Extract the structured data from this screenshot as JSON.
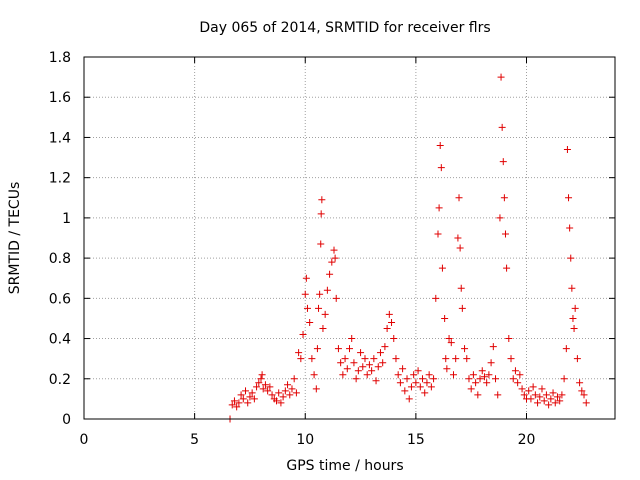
{
  "chart_data": {
    "type": "scatter",
    "title": "Day 065 of 2014, SRMTID for receiver flrs",
    "xlabel": "GPS time / hours",
    "ylabel": "SRMTID / TECUs",
    "xlim": [
      0,
      24
    ],
    "ylim": [
      0,
      1.8
    ],
    "xticks": [
      0,
      5,
      10,
      15,
      20
    ],
    "xtick_labels": [
      "0",
      "5",
      "10",
      "15",
      "20"
    ],
    "yticks": [
      0,
      0.2,
      0.4,
      0.6,
      0.8,
      1.0,
      1.2,
      1.4,
      1.6,
      1.8
    ],
    "ytick_labels": [
      "0",
      "0.2",
      "0.4",
      "0.6",
      "0.8",
      "1",
      "1.2",
      "1.4",
      "1.6",
      "1.8"
    ],
    "grid": true,
    "marker": "+",
    "color": "#e00000",
    "series": [
      {
        "name": "SRMTID",
        "points": [
          [
            6.6,
            0.0
          ],
          [
            6.7,
            0.07
          ],
          [
            6.8,
            0.09
          ],
          [
            6.9,
            0.06
          ],
          [
            7.0,
            0.08
          ],
          [
            7.1,
            0.12
          ],
          [
            7.2,
            0.1
          ],
          [
            7.3,
            0.14
          ],
          [
            7.4,
            0.08
          ],
          [
            7.5,
            0.11
          ],
          [
            7.6,
            0.13
          ],
          [
            7.7,
            0.1
          ],
          [
            7.8,
            0.16
          ],
          [
            7.9,
            0.18
          ],
          [
            8.0,
            0.2
          ],
          [
            8.05,
            0.22
          ],
          [
            8.1,
            0.15
          ],
          [
            8.2,
            0.17
          ],
          [
            8.3,
            0.14
          ],
          [
            8.4,
            0.16
          ],
          [
            8.5,
            0.12
          ],
          [
            8.6,
            0.1
          ],
          [
            8.7,
            0.09
          ],
          [
            8.8,
            0.13
          ],
          [
            8.9,
            0.08
          ],
          [
            9.0,
            0.11
          ],
          [
            9.1,
            0.14
          ],
          [
            9.2,
            0.17
          ],
          [
            9.3,
            0.12
          ],
          [
            9.4,
            0.15
          ],
          [
            9.5,
            0.2
          ],
          [
            9.6,
            0.13
          ],
          [
            9.7,
            0.33
          ],
          [
            9.8,
            0.3
          ],
          [
            9.9,
            0.42
          ],
          [
            10.0,
            0.62
          ],
          [
            10.05,
            0.7
          ],
          [
            10.1,
            0.55
          ],
          [
            10.2,
            0.48
          ],
          [
            10.3,
            0.3
          ],
          [
            10.4,
            0.22
          ],
          [
            10.5,
            0.15
          ],
          [
            10.55,
            0.35
          ],
          [
            10.6,
            0.55
          ],
          [
            10.65,
            0.62
          ],
          [
            10.7,
            0.87
          ],
          [
            10.72,
            1.02
          ],
          [
            10.75,
            1.09
          ],
          [
            10.8,
            0.45
          ],
          [
            10.9,
            0.52
          ],
          [
            11.0,
            0.64
          ],
          [
            11.1,
            0.72
          ],
          [
            11.2,
            0.78
          ],
          [
            11.3,
            0.84
          ],
          [
            11.35,
            0.8
          ],
          [
            11.4,
            0.6
          ],
          [
            11.5,
            0.35
          ],
          [
            11.6,
            0.28
          ],
          [
            11.7,
            0.22
          ],
          [
            11.8,
            0.3
          ],
          [
            11.9,
            0.25
          ],
          [
            12.0,
            0.35
          ],
          [
            12.1,
            0.4
          ],
          [
            12.2,
            0.28
          ],
          [
            12.3,
            0.2
          ],
          [
            12.4,
            0.24
          ],
          [
            12.5,
            0.33
          ],
          [
            12.6,
            0.26
          ],
          [
            12.7,
            0.3
          ],
          [
            12.8,
            0.22
          ],
          [
            12.9,
            0.27
          ],
          [
            13.0,
            0.24
          ],
          [
            13.1,
            0.3
          ],
          [
            13.2,
            0.19
          ],
          [
            13.3,
            0.26
          ],
          [
            13.4,
            0.33
          ],
          [
            13.5,
            0.28
          ],
          [
            13.6,
            0.36
          ],
          [
            13.7,
            0.45
          ],
          [
            13.8,
            0.52
          ],
          [
            13.9,
            0.48
          ],
          [
            14.0,
            0.4
          ],
          [
            14.1,
            0.3
          ],
          [
            14.2,
            0.22
          ],
          [
            14.3,
            0.18
          ],
          [
            14.4,
            0.25
          ],
          [
            14.5,
            0.14
          ],
          [
            14.6,
            0.2
          ],
          [
            14.7,
            0.1
          ],
          [
            14.8,
            0.16
          ],
          [
            14.9,
            0.22
          ],
          [
            15.0,
            0.18
          ],
          [
            15.1,
            0.24
          ],
          [
            15.2,
            0.16
          ],
          [
            15.3,
            0.2
          ],
          [
            15.4,
            0.13
          ],
          [
            15.5,
            0.18
          ],
          [
            15.6,
            0.22
          ],
          [
            15.7,
            0.16
          ],
          [
            15.8,
            0.2
          ],
          [
            15.9,
            0.6
          ],
          [
            16.0,
            0.92
          ],
          [
            16.05,
            1.05
          ],
          [
            16.1,
            1.36
          ],
          [
            16.15,
            1.25
          ],
          [
            16.2,
            0.75
          ],
          [
            16.3,
            0.5
          ],
          [
            16.35,
            0.3
          ],
          [
            16.4,
            0.25
          ],
          [
            16.5,
            0.4
          ],
          [
            16.6,
            0.38
          ],
          [
            16.7,
            0.22
          ],
          [
            16.8,
            0.3
          ],
          [
            16.9,
            0.9
          ],
          [
            16.95,
            1.1
          ],
          [
            17.0,
            0.85
          ],
          [
            17.05,
            0.65
          ],
          [
            17.1,
            0.55
          ],
          [
            17.2,
            0.35
          ],
          [
            17.3,
            0.3
          ],
          [
            17.4,
            0.2
          ],
          [
            17.5,
            0.15
          ],
          [
            17.6,
            0.22
          ],
          [
            17.7,
            0.18
          ],
          [
            17.8,
            0.12
          ],
          [
            17.9,
            0.2
          ],
          [
            18.0,
            0.24
          ],
          [
            18.1,
            0.21
          ],
          [
            18.2,
            0.18
          ],
          [
            18.3,
            0.22
          ],
          [
            18.4,
            0.28
          ],
          [
            18.5,
            0.36
          ],
          [
            18.6,
            0.2
          ],
          [
            18.7,
            0.12
          ],
          [
            18.8,
            1.0
          ],
          [
            18.85,
            1.7
          ],
          [
            18.9,
            1.45
          ],
          [
            18.95,
            1.28
          ],
          [
            19.0,
            1.1
          ],
          [
            19.05,
            0.92
          ],
          [
            19.1,
            0.75
          ],
          [
            19.2,
            0.4
          ],
          [
            19.3,
            0.3
          ],
          [
            19.4,
            0.2
          ],
          [
            19.5,
            0.24
          ],
          [
            19.6,
            0.18
          ],
          [
            19.7,
            0.22
          ],
          [
            19.8,
            0.15
          ],
          [
            19.9,
            0.12
          ],
          [
            20.0,
            0.1
          ],
          [
            20.1,
            0.14
          ],
          [
            20.2,
            0.1
          ],
          [
            20.3,
            0.16
          ],
          [
            20.4,
            0.12
          ],
          [
            20.5,
            0.08
          ],
          [
            20.6,
            0.11
          ],
          [
            20.7,
            0.15
          ],
          [
            20.8,
            0.09
          ],
          [
            20.9,
            0.12
          ],
          [
            21.0,
            0.07
          ],
          [
            21.1,
            0.1
          ],
          [
            21.2,
            0.13
          ],
          [
            21.3,
            0.08
          ],
          [
            21.4,
            0.11
          ],
          [
            21.5,
            0.09
          ],
          [
            21.6,
            0.12
          ],
          [
            21.7,
            0.2
          ],
          [
            21.8,
            0.35
          ],
          [
            21.85,
            1.34
          ],
          [
            21.9,
            1.1
          ],
          [
            21.95,
            0.95
          ],
          [
            22.0,
            0.8
          ],
          [
            22.05,
            0.65
          ],
          [
            22.1,
            0.5
          ],
          [
            22.15,
            0.45
          ],
          [
            22.2,
            0.55
          ],
          [
            22.3,
            0.3
          ],
          [
            22.4,
            0.18
          ],
          [
            22.5,
            0.14
          ],
          [
            22.6,
            0.12
          ],
          [
            22.7,
            0.08
          ]
        ]
      }
    ]
  }
}
